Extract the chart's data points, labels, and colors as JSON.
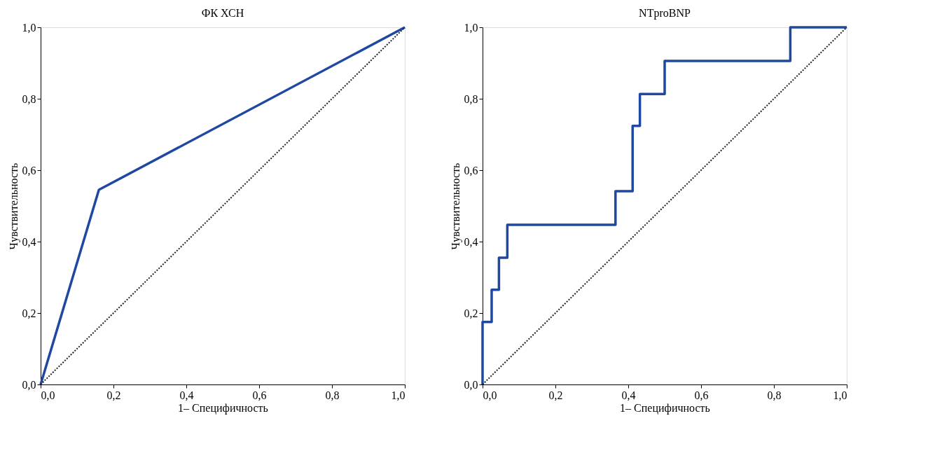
{
  "chart_data": [
    {
      "type": "line",
      "title": "ФК ХСН",
      "xlabel": "1– Специфичность",
      "ylabel": "Чувствительность",
      "xlim": [
        0,
        1
      ],
      "ylim": [
        0,
        1
      ],
      "xticks": [
        {
          "value": 0,
          "label": "0,0"
        },
        {
          "value": 0.2,
          "label": "0,2"
        },
        {
          "value": 0.4,
          "label": "0,4"
        },
        {
          "value": 0.6,
          "label": "0,6"
        },
        {
          "value": 0.8,
          "label": "0,8"
        },
        {
          "value": 1,
          "label": "1,0"
        }
      ],
      "yticks": [
        {
          "value": 0,
          "label": "0,0"
        },
        {
          "value": 0.2,
          "label": "0,2"
        },
        {
          "value": 0.4,
          "label": "0,4"
        },
        {
          "value": 0.6,
          "label": "0,6"
        },
        {
          "value": 0.8,
          "label": "0,8"
        },
        {
          "value": 1,
          "label": "1,0"
        }
      ],
      "grid": false,
      "marker": "none",
      "series": [
        {
          "color": "#1f48a0",
          "line_style": "solid",
          "x": [
            0,
            0.16,
            1
          ],
          "values": [
            0,
            0.545,
            1
          ]
        },
        {
          "type": "line",
          "color": "#222222",
          "line_style": "dotted",
          "x": [
            0,
            1
          ],
          "values": [
            0,
            1
          ]
        }
      ]
    },
    {
      "type": "step",
      "title": "NTproBNP",
      "xlabel": "1– Специфичность",
      "ylabel": "Чувствительность",
      "xlim": [
        0,
        1
      ],
      "ylim": [
        0,
        1
      ],
      "xticks": [
        {
          "value": 0,
          "label": "0,0"
        },
        {
          "value": 0.2,
          "label": "0,2"
        },
        {
          "value": 0.4,
          "label": "0,4"
        },
        {
          "value": 0.6,
          "label": "0,6"
        },
        {
          "value": 0.8,
          "label": "0,8"
        },
        {
          "value": 1,
          "label": "1,0"
        }
      ],
      "yticks": [
        {
          "value": 0,
          "label": "0,0"
        },
        {
          "value": 0.2,
          "label": "0,2"
        },
        {
          "value": 0.4,
          "label": "0,4"
        },
        {
          "value": 0.6,
          "label": "0,6"
        },
        {
          "value": 0.8,
          "label": "0,8"
        },
        {
          "value": 1,
          "label": "1,0"
        }
      ],
      "grid": false,
      "marker": "none",
      "series": [
        {
          "color": "#1f48a0",
          "line_style": "solid",
          "x": [
            0,
            0,
            0.025,
            0.045,
            0.068,
            0.365,
            0.412,
            0.432,
            0.5,
            0.845,
            1
          ],
          "values": [
            0,
            0.175,
            0.265,
            0.355,
            0.447,
            0.541,
            0.724,
            0.813,
            0.906,
            1.0,
            1.0
          ]
        },
        {
          "type": "line",
          "color": "#222222",
          "line_style": "dotted",
          "x": [
            0,
            1
          ],
          "values": [
            0,
            1
          ]
        }
      ]
    }
  ]
}
